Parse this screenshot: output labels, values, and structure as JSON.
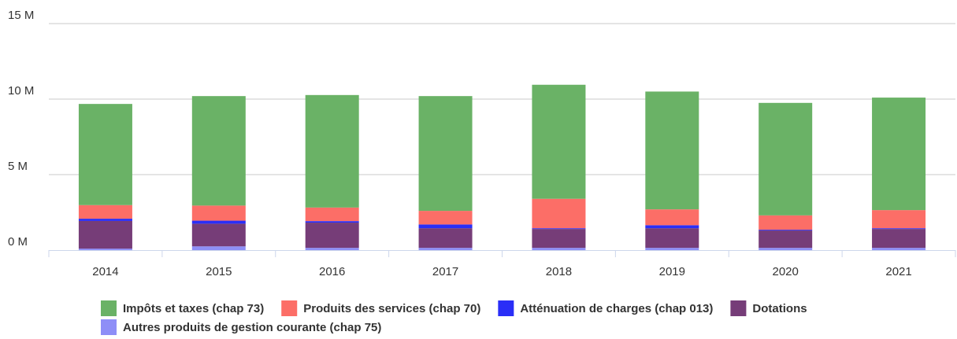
{
  "chart_data": {
    "type": "stacked_bar",
    "categories": [
      "2014",
      "2015",
      "2016",
      "2017",
      "2018",
      "2019",
      "2020",
      "2021"
    ],
    "series": [
      {
        "name": "Impôts et taxes (chap 73)",
        "color": "#6ab266",
        "values": [
          6.7,
          7.25,
          7.45,
          7.6,
          7.55,
          7.8,
          7.45,
          7.45
        ]
      },
      {
        "name": "Produits des services (chap 70)",
        "color": "#fc6e67",
        "values": [
          0.9,
          1.0,
          0.9,
          0.9,
          1.95,
          1.05,
          0.95,
          1.2
        ]
      },
      {
        "name": "Atténuation de charges (chap 013)",
        "color": "#2a2ef7",
        "values": [
          0.15,
          0.2,
          0.1,
          0.25,
          0.05,
          0.2,
          0.05,
          0.05
        ]
      },
      {
        "name": "Dotations",
        "color": "#763d78",
        "values": [
          1.83,
          1.5,
          1.67,
          1.3,
          1.25,
          1.3,
          1.15,
          1.25
        ]
      },
      {
        "name": "Autres produits de gestion courante (chap 75)",
        "color": "#8e8ef7",
        "values": [
          0.1,
          0.25,
          0.15,
          0.15,
          0.15,
          0.15,
          0.15,
          0.15
        ]
      }
    ],
    "ylim": [
      0,
      15
    ],
    "yticks": [
      {
        "value": 0,
        "label": "0 M"
      },
      {
        "value": 5,
        "label": "5 M"
      },
      {
        "value": 10,
        "label": "10 M"
      },
      {
        "value": 15,
        "label": "15 M"
      }
    ],
    "grid": true,
    "legend": "bottom"
  }
}
